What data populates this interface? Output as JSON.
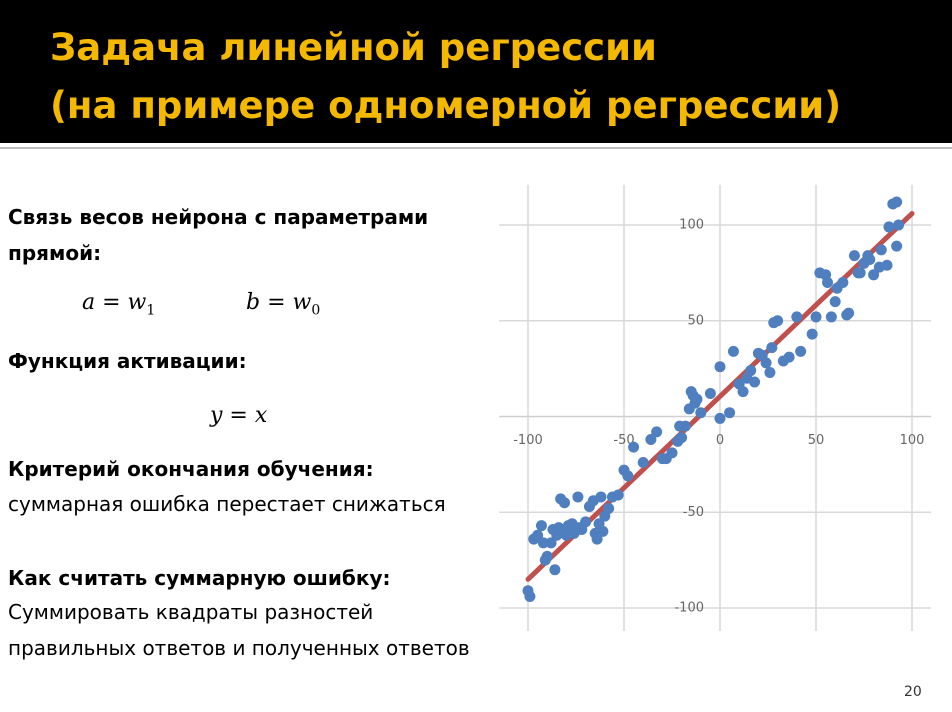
{
  "header": {
    "title_line1": "Задача линейной регрессии",
    "title_line2": "(на примере одномерной регрессии)"
  },
  "body": {
    "heading1": "Связь весов нейрона с параметрами",
    "heading1_cont": "прямой:",
    "formula1": {
      "lhs": "a = w",
      "sub": "1"
    },
    "formula2": {
      "lhs": "b = w",
      "sub": "0"
    },
    "heading2": "Функция активации:",
    "formula3": "y = x",
    "heading3": "Критерий окончания обучения:",
    "text3": "суммарная ошибка перестает снижаться",
    "heading4": "Как считать суммарную ошибку:",
    "text4_line1": "Суммировать квадраты разностей",
    "text4_line2": "правильных ответов и полученных ответов"
  },
  "page_number": "20",
  "chart_data": {
    "type": "scatter",
    "color": "#4f7fbf",
    "grid": true,
    "xlim": [
      -115,
      110
    ],
    "ylim": [
      -112,
      121
    ],
    "xticks": [
      -100,
      -50,
      0,
      50,
      100
    ],
    "yticks": [
      -100,
      -50,
      50,
      100
    ],
    "x": [
      -100,
      -99,
      -97,
      -95,
      -93,
      -92,
      -91,
      -90,
      -88,
      -87,
      -86,
      -85,
      -84,
      -83,
      -82,
      -81,
      -80,
      -79,
      -78,
      -77,
      -76,
      -75,
      -74,
      -73,
      -72,
      -70,
      -68,
      -66,
      -65,
      -64,
      -63,
      -62,
      -61,
      -60,
      -58,
      -56,
      -53,
      -50,
      -48,
      -45,
      -40,
      -36,
      -33,
      -30,
      -28,
      -25,
      -22,
      -21,
      -20,
      -18,
      -16,
      -15,
      -14,
      -13,
      -12,
      -10,
      -5,
      0,
      0,
      5,
      7,
      10,
      12,
      14,
      16,
      18,
      20,
      22,
      24,
      26,
      27,
      28,
      30,
      33,
      36,
      40,
      42,
      48,
      50,
      52,
      55,
      56,
      58,
      60,
      61,
      64,
      66,
      67,
      70,
      72,
      73,
      75,
      77,
      78,
      80,
      83,
      84,
      87,
      88,
      90,
      92,
      93,
      92
    ],
    "y": [
      -91,
      -94,
      -64,
      -62,
      -57,
      -66,
      -75,
      -73,
      -66,
      -59,
      -80,
      -62,
      -58,
      -43,
      -60,
      -45,
      -62,
      -57,
      -59,
      -56,
      -61,
      -58,
      -42,
      -58,
      -59,
      -55,
      -47,
      -44,
      -61,
      -64,
      -56,
      -42,
      -60,
      -52,
      -48,
      -42,
      -41,
      -28,
      -31,
      -16,
      -24,
      -12,
      -8,
      -22,
      -22,
      -19,
      -13,
      -5,
      -11,
      -5,
      4,
      13,
      11,
      7,
      9,
      2,
      12,
      -1,
      26,
      2,
      34,
      17,
      13,
      20,
      24,
      18,
      33,
      32,
      28,
      23,
      36,
      49,
      50,
      29,
      31,
      52,
      34,
      43,
      52,
      75,
      74,
      70,
      52,
      60,
      67,
      70,
      53,
      54,
      84,
      75,
      75,
      80,
      84,
      82,
      74,
      78,
      87,
      79,
      99,
      111,
      112,
      100,
      89
    ],
    "trendline": {
      "color": "#c0504d",
      "x": [
        -100,
        100
      ],
      "y": [
        -85,
        106
      ]
    }
  }
}
